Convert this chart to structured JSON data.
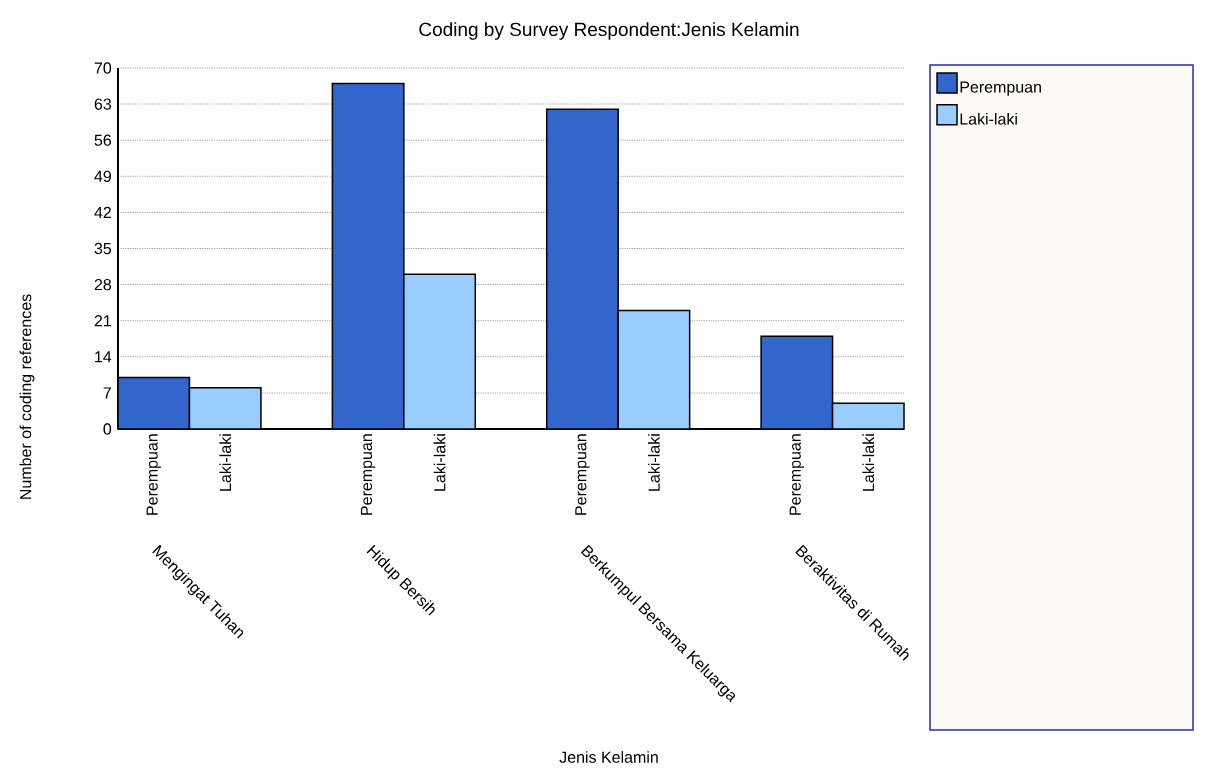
{
  "chart_data": {
    "type": "bar",
    "title": "Coding by Survey Respondent:Jenis Kelamin",
    "xlabel": "Jenis Kelamin",
    "ylabel": "Number of coding references",
    "categories": [
      "Mengingat Tuhan",
      "Hidup Bersih",
      "Berkumpul Bersama Keluarga",
      "Beraktivitas di Rumah"
    ],
    "series": [
      {
        "name": "Perempuan",
        "color": "#3366cc",
        "values": [
          10,
          67,
          62,
          18
        ]
      },
      {
        "name": "Laki-laki",
        "color": "#99ccff",
        "values": [
          8,
          30,
          23,
          5
        ]
      }
    ],
    "ylim": [
      0,
      70
    ],
    "yticks": [
      0,
      7,
      14,
      21,
      28,
      35,
      42,
      49,
      56,
      63,
      70
    ],
    "grid": "y",
    "legend": "right"
  }
}
